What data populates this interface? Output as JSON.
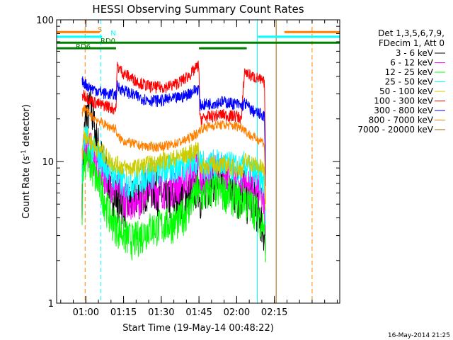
{
  "chart_data": {
    "type": "line",
    "title": "HESSI Observing Summary Count Rates",
    "xlabel": "Start Time (19-May-14 00:48:22)",
    "ylabel_main": "Count Rate (s",
    "ylabel_sup": "-1",
    "ylabel_mid": " detector",
    "ylabel_end": ")",
    "y_scale": "log",
    "ylim": [
      1,
      100
    ],
    "y_ticks": [
      {
        "value": 1,
        "label": "1"
      },
      {
        "value": 10,
        "label": "10"
      },
      {
        "value": 100,
        "label": "100"
      }
    ],
    "xlim_min": [
      48.37,
      161
    ],
    "x_ticks": [
      {
        "value": 60,
        "label": "01:00"
      },
      {
        "value": 75,
        "label": "01:15"
      },
      {
        "value": 90,
        "label": "01:30"
      },
      {
        "value": 105,
        "label": "01:45"
      },
      {
        "value": 120,
        "label": "02:00"
      },
      {
        "value": 135,
        "label": "02:15"
      }
    ],
    "legend_header": [
      "Det 1,3,5,6,7,9,",
      "FDecim 1, Att 0"
    ],
    "legend_placement": "right",
    "footer_timestamp": "16-May-2014 21:25",
    "series": [
      {
        "name": "3 - 6 keV",
        "color": "#000000",
        "x": [
          58.5,
          59,
          60,
          62,
          64,
          66,
          68,
          70,
          73,
          76,
          79,
          82,
          85,
          88,
          91,
          94,
          97,
          100,
          103,
          105,
          105.3,
          108,
          111,
          114,
          117,
          120,
          122,
          123.2,
          124,
          126,
          128,
          130,
          131,
          131.5
        ],
        "y": [
          6,
          12,
          21,
          25,
          15,
          11,
          9,
          6.5,
          5.5,
          5,
          5.5,
          6,
          7,
          6.5,
          5.5,
          5.5,
          6,
          5.8,
          6.5,
          7.2,
          5.7,
          6.8,
          8,
          7.3,
          6.6,
          5.7,
          5.8,
          7.2,
          5.3,
          6,
          4.8,
          3.8,
          3.2,
          2
        ]
      },
      {
        "name": "6 - 12 keV",
        "color": "#ff00ff",
        "x": [
          58.5,
          59,
          60,
          62,
          64,
          66,
          68,
          70,
          73,
          76,
          79,
          82,
          85,
          88,
          91,
          94,
          97,
          100,
          103,
          105,
          105.3,
          108,
          111,
          114,
          117,
          120,
          122,
          123.2,
          124,
          126,
          128,
          130,
          131,
          131.5
        ],
        "y": [
          7,
          12,
          13,
          12.5,
          10,
          9,
          8,
          7,
          6.5,
          5.5,
          5.5,
          5.8,
          7.3,
          6.5,
          6.5,
          6.8,
          7,
          7.8,
          8.6,
          9.5,
          7.2,
          8.2,
          9,
          8.8,
          8.5,
          7.5,
          6.8,
          8.2,
          6.8,
          7,
          6.6,
          5.5,
          5,
          2.5
        ]
      },
      {
        "name": "12 - 25 keV",
        "color": "#00ff00",
        "x": [
          58.5,
          59,
          60,
          62,
          64,
          66,
          68,
          70,
          73,
          76,
          79,
          82,
          85,
          88,
          91,
          94,
          97,
          100,
          103,
          105,
          105.3,
          108,
          111,
          114,
          117,
          120,
          122,
          123.2,
          124,
          126,
          128,
          130,
          131,
          131.5
        ],
        "y": [
          5,
          10.5,
          11,
          9.5,
          7.5,
          6.5,
          5,
          4,
          3.4,
          3,
          2.8,
          3.1,
          3.4,
          3.5,
          3.6,
          3.7,
          3.9,
          4.5,
          5.6,
          6.5,
          5.6,
          6,
          6.5,
          6.2,
          6,
          5.6,
          5.2,
          6,
          5,
          5,
          4.5,
          3.8,
          3.5,
          1.9
        ]
      },
      {
        "name": "25 - 50 keV",
        "color": "#00ffff",
        "x": [
          58.5,
          59,
          60,
          62,
          64,
          66,
          68,
          70,
          73,
          76,
          79,
          82,
          85,
          88,
          91,
          94,
          97,
          100,
          103,
          105,
          105.3,
          108,
          111,
          114,
          117,
          120,
          122,
          123.2,
          124,
          126,
          128,
          130,
          131,
          131.5
        ],
        "y": [
          9,
          14,
          15,
          13,
          11.5,
          10.5,
          9.5,
          8.5,
          7.5,
          7,
          7.2,
          7.8,
          8.3,
          8.5,
          8.8,
          9,
          9.4,
          9.6,
          10.2,
          10.5,
          9.5,
          9.6,
          9.8,
          9.7,
          9.5,
          9,
          8.8,
          9.8,
          9,
          8.8,
          8.2,
          7.5,
          7,
          3
        ]
      },
      {
        "name": "50 - 100 keV",
        "color": "#cccc00",
        "x": [
          58.5,
          59,
          60,
          62,
          64,
          66,
          68,
          70,
          73,
          76,
          79,
          82,
          85,
          88,
          91,
          94,
          97,
          100,
          103,
          105,
          105.3,
          108,
          111,
          114,
          117,
          120,
          122,
          123.2,
          124,
          126,
          128,
          130,
          131,
          131.5
        ],
        "y": [
          11,
          15,
          15.5,
          14,
          12.5,
          12,
          11,
          10,
          9.5,
          9,
          9,
          9.3,
          9.6,
          9.8,
          10.2,
          10.4,
          10.8,
          11.2,
          11.8,
          12.2,
          9.2,
          9.4,
          9.6,
          9.5,
          9.4,
          9,
          8.8,
          10.2,
          10,
          9.8,
          9.4,
          9,
          8.6,
          3.5
        ]
      },
      {
        "name": "100 - 300 keV",
        "color": "#ff0000",
        "x": [
          58.5,
          59,
          60,
          62,
          64,
          66,
          68,
          70,
          72,
          72.5,
          75,
          78,
          81,
          84,
          87,
          90,
          93,
          96,
          99,
          102,
          105,
          105.3,
          108,
          111,
          114,
          117,
          120,
          122,
          123.2,
          124,
          126,
          128,
          130,
          131,
          131.5
        ],
        "y": [
          28,
          30,
          29,
          27,
          26,
          25,
          25,
          24,
          23.5,
          47,
          42,
          39,
          36.5,
          34.5,
          33.5,
          33.5,
          34,
          35.5,
          38,
          42,
          48,
          20,
          20.5,
          21,
          21.5,
          21,
          21,
          20,
          44,
          42,
          40,
          39,
          37,
          36,
          6
        ]
      },
      {
        "name": "300 - 800 keV",
        "color": "#0000ff",
        "x": [
          58.5,
          59,
          60,
          62,
          64,
          66,
          68,
          70,
          72,
          72.5,
          75,
          78,
          81,
          84,
          87,
          90,
          93,
          96,
          99,
          102,
          105,
          105.3,
          108,
          111,
          114,
          117,
          120,
          122,
          123.2,
          124,
          126,
          128,
          130,
          131,
          131.5
        ],
        "y": [
          36,
          37,
          35,
          33,
          32,
          31,
          30,
          30,
          29.5,
          34,
          32,
          30,
          28.5,
          27.5,
          27,
          27,
          27.5,
          28,
          29,
          31,
          33,
          25,
          25.5,
          26,
          26.5,
          26,
          25.5,
          24.5,
          26,
          25,
          23,
          22,
          21.5,
          21,
          5
        ]
      },
      {
        "name": "800 - 7000 keV",
        "color": "#ff8000",
        "x": [
          58.5,
          59,
          60,
          62,
          64,
          66,
          68,
          70,
          72,
          72.5,
          75,
          78,
          81,
          84,
          87,
          90,
          93,
          96,
          99,
          102,
          105,
          105.3,
          108,
          111,
          114,
          117,
          120,
          122,
          123.2,
          124,
          126,
          128,
          130,
          131,
          131.5
        ],
        "y": [
          22,
          24,
          23,
          21,
          20,
          19,
          18,
          17.5,
          17,
          15,
          14,
          13.5,
          13,
          12.8,
          12.7,
          12.8,
          13,
          13.5,
          14,
          15,
          16,
          17,
          17.5,
          18,
          18.2,
          18,
          17.8,
          17.5,
          17,
          16,
          15,
          14.5,
          14,
          13.5,
          4
        ]
      },
      {
        "name": "7000 - 20000 keV",
        "color": "#a06400",
        "x": [
          58.5,
          62,
          66,
          70,
          75,
          80,
          85,
          90,
          95,
          100,
          105,
          105.3,
          110,
          115,
          120,
          123.2,
          126,
          130,
          131.5
        ],
        "y": [
          0,
          0,
          0,
          0,
          0,
          0,
          0,
          0,
          0,
          0,
          0,
          0,
          0,
          0,
          0,
          0,
          0,
          0,
          0
        ]
      }
    ],
    "vertical_markers": [
      {
        "x": 59.7,
        "color": "#ff8000",
        "style": "dashed"
      },
      {
        "x": 65.9,
        "color": "#00ffff",
        "style": "dashed"
      },
      {
        "x": 128.2,
        "color": "#00ffff",
        "style": "solid"
      },
      {
        "x": 135.7,
        "color": "#a06400",
        "style": "solid"
      },
      {
        "x": 150,
        "color": "#ff8000",
        "style": "dashed"
      }
    ],
    "flag_bars": [
      {
        "label": "S",
        "color": "#ff8000",
        "y": 82,
        "segments": [
          [
            48.37,
            65.5
          ],
          [
            139,
            161
          ]
        ]
      },
      {
        "label": "N",
        "color": "#00ffff",
        "y": 76,
        "segments": [
          [
            48.37,
            66.5
          ],
          [
            128.5,
            161
          ]
        ]
      },
      {
        "label": "RD0",
        "color": "#008000",
        "y": 69,
        "segments": [
          [
            48.37,
            161
          ]
        ]
      },
      {
        "label": "RD6",
        "color": "#008000",
        "y": 63,
        "segments": [
          [
            48.37,
            72
          ],
          [
            105,
            124
          ]
        ]
      }
    ]
  }
}
